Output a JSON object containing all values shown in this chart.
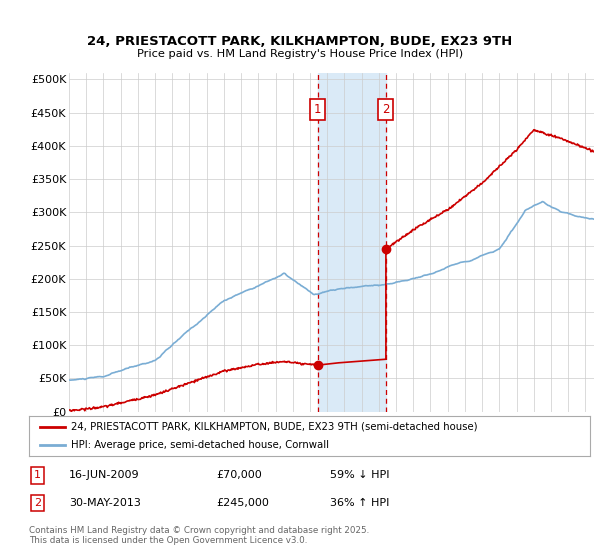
{
  "title": "24, PRIESTACOTT PARK, KILKHAMPTON, BUDE, EX23 9TH",
  "subtitle": "Price paid vs. HM Land Registry's House Price Index (HPI)",
  "ylabel_ticks": [
    "£0",
    "£50K",
    "£100K",
    "£150K",
    "£200K",
    "£250K",
    "£300K",
    "£350K",
    "£400K",
    "£450K",
    "£500K"
  ],
  "ytick_values": [
    0,
    50000,
    100000,
    150000,
    200000,
    250000,
    300000,
    350000,
    400000,
    450000,
    500000
  ],
  "ylim": [
    0,
    510000
  ],
  "xlim_start": 1995.0,
  "xlim_end": 2025.5,
  "sale1_date": 2009.46,
  "sale1_price": 70000,
  "sale1_label": "1",
  "sale2_date": 2013.41,
  "sale2_price": 245000,
  "sale2_label": "2",
  "highlight_x1": 2009.46,
  "highlight_x2": 2013.41,
  "legend_line1": "24, PRIESTACOTT PARK, KILKHAMPTON, BUDE, EX23 9TH (semi-detached house)",
  "legend_line2": "HPI: Average price, semi-detached house, Cornwall",
  "table_row1": [
    "1",
    "16-JUN-2009",
    "£70,000",
    "59% ↓ HPI"
  ],
  "table_row2": [
    "2",
    "30-MAY-2013",
    "£245,000",
    "36% ↑ HPI"
  ],
  "footnote": "Contains HM Land Registry data © Crown copyright and database right 2025.\nThis data is licensed under the Open Government Licence v3.0.",
  "red_color": "#cc0000",
  "blue_color": "#7aadd4",
  "highlight_color": "#daeaf7",
  "grid_color": "#cccccc",
  "background_color": "#ffffff"
}
